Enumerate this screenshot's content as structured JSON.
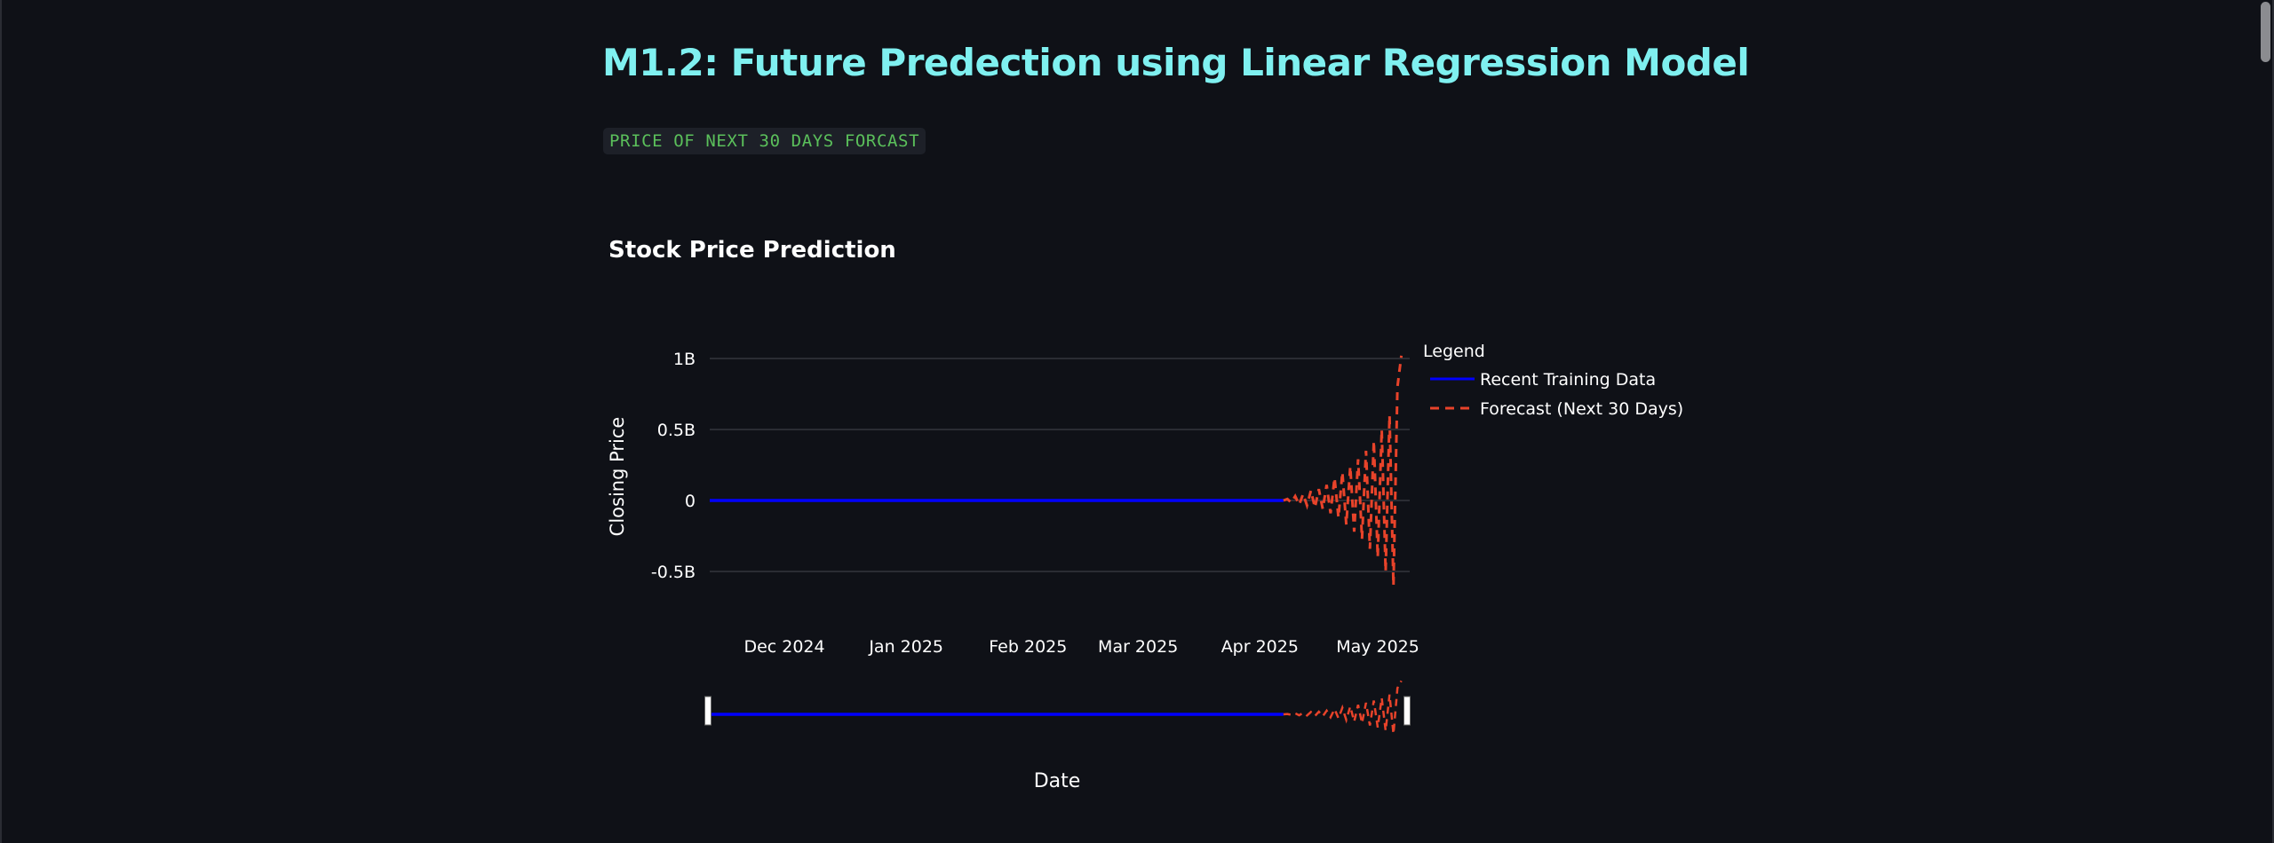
{
  "page": {
    "title": "M1.2: Future Predection using Linear Regression Model",
    "code_label": "PRICE OF NEXT 30 DAYS FORCAST"
  },
  "colors": {
    "background": "#0f1117",
    "title": "#7ff0f0",
    "code_text": "#5bc05b",
    "training_series": "#0000ff",
    "forecast_series": "#e8432a",
    "grid": "#3a3c44"
  },
  "chart_data": {
    "type": "line",
    "title": "Stock Price Prediction",
    "xlabel": "Date",
    "ylabel": "Closing Price",
    "x_tick_labels": [
      "Dec 2024",
      "Jan 2025",
      "Feb 2025",
      "Mar 2025",
      "Apr 2025",
      "May 2025"
    ],
    "x_tick_dates": [
      "2024-12-01",
      "2025-01-01",
      "2025-02-01",
      "2025-03-01",
      "2025-04-01",
      "2025-05-01"
    ],
    "y_ticks": [
      -500000000,
      0,
      500000000,
      1000000000
    ],
    "y_tick_labels": [
      "-0.5B",
      "0",
      "0.5B",
      "1B"
    ],
    "ylim": [
      -800000000,
      1050000000
    ],
    "xlim": [
      "2024-11-12",
      "2025-05-08"
    ],
    "grid": true,
    "legend": {
      "title": "Legend",
      "placement": "right"
    },
    "range_slider": true,
    "series": [
      {
        "name": "Recent Training Data",
        "style": "solid",
        "color": "#0000ff",
        "x_start": "2024-11-12",
        "x_end": "2025-04-07",
        "value": 0
      },
      {
        "name": "Forecast (Next 30 Days)",
        "style": "dash",
        "color": "#e8432a",
        "x": [
          "2025-04-07",
          "2025-04-08",
          "2025-04-09",
          "2025-04-10",
          "2025-04-11",
          "2025-04-12",
          "2025-04-13",
          "2025-04-14",
          "2025-04-15",
          "2025-04-16",
          "2025-04-17",
          "2025-04-18",
          "2025-04-19",
          "2025-04-20",
          "2025-04-21",
          "2025-04-22",
          "2025-04-23",
          "2025-04-24",
          "2025-04-25",
          "2025-04-26",
          "2025-04-27",
          "2025-04-28",
          "2025-04-29",
          "2025-04-30",
          "2025-05-01",
          "2025-05-02",
          "2025-05-03",
          "2025-05-04",
          "2025-05-05",
          "2025-05-06",
          "2025-05-07"
        ],
        "values": [
          0,
          10000000,
          -15000000,
          30000000,
          -30000000,
          45000000,
          -35000000,
          70000000,
          -50000000,
          80000000,
          -60000000,
          110000000,
          -90000000,
          160000000,
          -120000000,
          200000000,
          -170000000,
          240000000,
          -220000000,
          290000000,
          -270000000,
          350000000,
          -340000000,
          420000000,
          -400000000,
          500000000,
          -500000000,
          600000000,
          -600000000,
          800000000,
          1020000000
        ]
      }
    ]
  }
}
